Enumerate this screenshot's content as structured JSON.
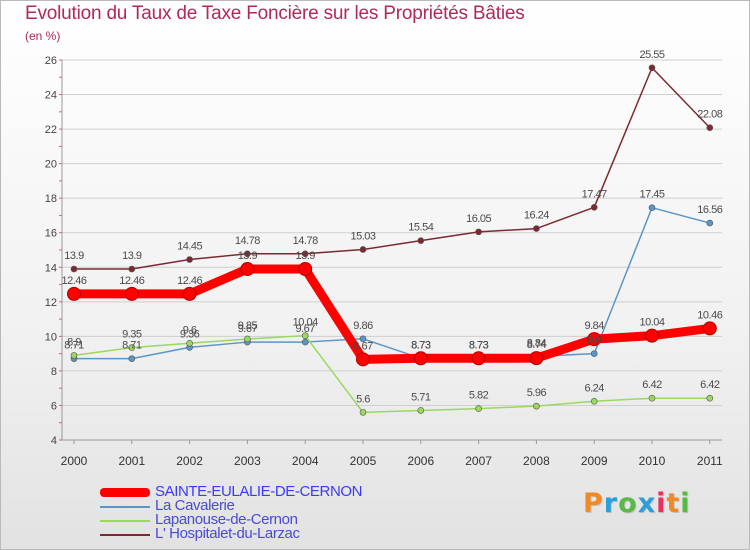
{
  "header": {
    "title": "Evolution du Taux de Taxe Foncière sur les Propriétés Bâties",
    "unit": "(en %)"
  },
  "logo": {
    "text": "Proxiti",
    "colors": [
      "#f08a24",
      "#2b9fd8",
      "#58b947",
      "#2b9fd8",
      "#e8305a",
      "#f08a24",
      "#58b947"
    ]
  },
  "chart_data": {
    "type": "line",
    "title": "Evolution du Taux de Taxe Foncière sur les Propriétés Bâties",
    "ylabel": "(en %)",
    "xlabel": "",
    "categories": [
      "2000",
      "2001",
      "2002",
      "2003",
      "2004",
      "2005",
      "2006",
      "2007",
      "2008",
      "2009",
      "2010",
      "2011"
    ],
    "ylim": [
      4,
      26
    ],
    "yticks": [
      4,
      6,
      8,
      10,
      12,
      14,
      16,
      18,
      20,
      22,
      24,
      26
    ],
    "grid": "horizontal",
    "legend_position": "bottom-left",
    "series": [
      {
        "name": "SAINTE-EULALIE-DE-CERNON",
        "color": "#ff0000",
        "emphasis": true,
        "values": [
          12.46,
          12.46,
          12.46,
          13.9,
          13.9,
          8.67,
          8.73,
          8.73,
          8.74,
          9.84,
          10.04,
          10.46
        ],
        "labels": [
          "12.46",
          "12.46",
          "12.46",
          "13.9",
          "13.9",
          "8.67",
          "8.73",
          "8.73",
          "8.74",
          "9.84",
          "10.04",
          "10.46"
        ]
      },
      {
        "name": "La Cavalerie",
        "color": "#5a96c8",
        "values": [
          8.71,
          8.71,
          9.36,
          9.67,
          9.67,
          9.86,
          8.73,
          8.73,
          8.84,
          9.0,
          17.45,
          16.56
        ],
        "labels": [
          "8.71",
          "8.71",
          "9.36",
          "9.67",
          "9.67",
          "9.86",
          "8.73",
          "8.73",
          "8.84",
          "9.0",
          "17.45",
          "16.56"
        ]
      },
      {
        "name": "Lapanouse-de-Cernon",
        "color": "#9ad860",
        "values": [
          8.9,
          9.35,
          9.6,
          9.85,
          10.04,
          5.6,
          5.71,
          5.82,
          5.96,
          6.24,
          6.42,
          6.42
        ],
        "labels": [
          "8.9",
          "9.35",
          "9.6",
          "9.85",
          "10.04",
          "5.6",
          "5.71",
          "5.82",
          "5.96",
          "6.24",
          "6.42",
          "6.42"
        ]
      },
      {
        "name": "L' Hospitalet-du-Larzac",
        "color": "#7a2a30",
        "values": [
          13.9,
          13.9,
          14.45,
          14.78,
          14.78,
          15.03,
          15.54,
          16.05,
          16.24,
          17.47,
          25.55,
          22.08
        ],
        "labels": [
          "13.9",
          "13.9",
          "14.45",
          "14.78",
          "14.78",
          "15.03",
          "15.54",
          "16.05",
          "16.24",
          "17.47",
          "25.55",
          "22.08"
        ]
      }
    ]
  }
}
